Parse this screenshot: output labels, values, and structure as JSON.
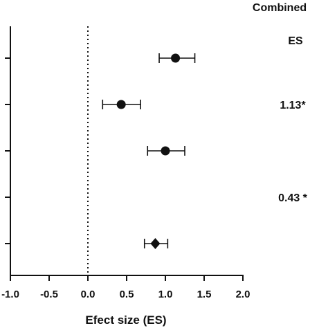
{
  "chart_data": {
    "type": "scatter",
    "subtype": "forest-plot",
    "xlabel": "Efect size (ES)",
    "xlim": [
      -1.0,
      2.0
    ],
    "xticks": [
      -1.0,
      -0.5,
      0.0,
      0.5,
      1.0,
      1.5,
      2.0
    ],
    "xtick_labels": [
      "-1.0",
      "-0.5",
      "0.0",
      "0.5",
      "1.0",
      "1.5",
      "2.0"
    ],
    "reference_line": {
      "x": 0,
      "style": "dotted"
    },
    "row_count": 5,
    "points": [
      {
        "row": 1,
        "es": 1.13,
        "ci_low": 0.92,
        "ci_high": 1.38,
        "marker": "circle"
      },
      {
        "row": 2,
        "es": 0.43,
        "ci_low": 0.19,
        "ci_high": 0.68,
        "marker": "circle"
      },
      {
        "row": 3,
        "es": 1.0,
        "ci_low": 0.77,
        "ci_high": 1.25,
        "marker": "circle"
      },
      {
        "row": 5,
        "es": 0.87,
        "ci_low": 0.73,
        "ci_high": 1.03,
        "marker": "diamond"
      }
    ],
    "right_header": [
      "Combined",
      "ES"
    ],
    "right_labels": [
      {
        "row": 2,
        "text": "1.13*"
      },
      {
        "row": 4,
        "text": "0.43 *"
      }
    ],
    "grid": false,
    "legend": "none"
  }
}
